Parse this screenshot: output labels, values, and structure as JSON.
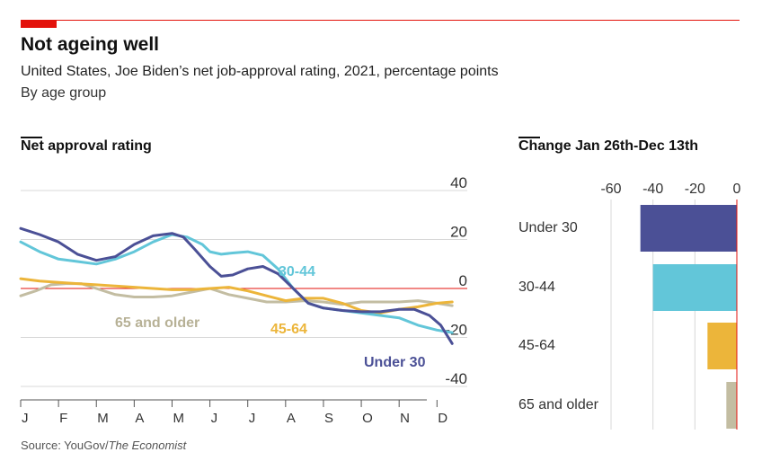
{
  "header": {
    "title": "Not ageing well",
    "subtitle": "United States, Joe Biden’s net job-approval rating, 2021, percentage points",
    "subtitle2": "By age group"
  },
  "source": {
    "prefix": "Source: YouGov/",
    "publication": "The Economist"
  },
  "colors": {
    "accent": "#e3120b",
    "under30": "#4b5096",
    "age30_44": "#62c6d9",
    "age45_64": "#ecb53a",
    "age65plus": "#c3bda2",
    "grid": "#d8d8d8",
    "zero": "#e3120b"
  },
  "chart_data": [
    {
      "type": "line",
      "title": "Net approval rating",
      "xlabel": "",
      "ylabel": "",
      "ylim": [
        -40,
        40
      ],
      "yticks": [
        40,
        20,
        0,
        -20,
        -40
      ],
      "ytick_labels": [
        "40",
        "20",
        "0",
        "-20",
        "-40"
      ],
      "x_tick_labels": [
        "J",
        "F",
        "M",
        "A",
        "M",
        "J",
        "J",
        "A",
        "S",
        "O",
        "N",
        "D"
      ],
      "xlim": [
        0.0,
        11.8
      ],
      "grid": "horizontal",
      "series": [
        {
          "name": "Under 30",
          "color": "#4b5096",
          "x": [
            0,
            0.5,
            1,
            1.5,
            2,
            2.5,
            3,
            3.5,
            4,
            4.3,
            4.6,
            5,
            5.3,
            5.6,
            6,
            6.4,
            6.8,
            7.2,
            7.6,
            8,
            8.5,
            9,
            9.5,
            10,
            10.4,
            10.8,
            11.1,
            11.4
          ],
          "y": [
            24.5,
            22,
            19,
            14,
            11.5,
            13,
            18,
            21.5,
            22.5,
            21,
            16,
            9,
            5,
            5.5,
            8,
            9,
            6,
            0,
            -6,
            -8,
            -9,
            -9.5,
            -9.5,
            -8.5,
            -8.5,
            -11,
            -15,
            -22.5
          ]
        },
        {
          "name": "30-44",
          "color": "#62c6d9",
          "x": [
            0,
            0.5,
            1,
            1.5,
            2,
            2.5,
            3,
            3.5,
            4,
            4.4,
            4.8,
            5,
            5.3,
            5.6,
            6,
            6.4,
            6.8,
            7.2,
            7.6,
            8,
            8.5,
            9,
            9.5,
            10,
            10.5,
            11,
            11.4
          ],
          "y": [
            19,
            15,
            12,
            11,
            10,
            12,
            15,
            19,
            22,
            21,
            18,
            15,
            14,
            14.5,
            15,
            13.5,
            8,
            0,
            -6,
            -8,
            -9,
            -10,
            -11,
            -12,
            -15,
            -17,
            -18
          ]
        },
        {
          "name": "45-64",
          "color": "#ecb53a",
          "x": [
            0,
            0.5,
            1,
            1.5,
            2,
            2.5,
            3,
            3.5,
            4,
            4.5,
            5,
            5.5,
            6,
            6.5,
            7,
            7.5,
            8,
            8.5,
            9,
            9.5,
            10,
            10.5,
            11,
            11.4
          ],
          "y": [
            4,
            3,
            2.5,
            2,
            1.5,
            1,
            0.5,
            0,
            -0.5,
            -0.5,
            0,
            0.5,
            -1,
            -3,
            -5,
            -4,
            -4,
            -6,
            -9,
            -10,
            -8.5,
            -7.5,
            -6,
            -5.5
          ]
        },
        {
          "name": "65 and older",
          "color": "#c3bda2",
          "x": [
            0,
            0.4,
            0.8,
            1.2,
            1.6,
            2,
            2.5,
            3,
            3.5,
            4,
            4.5,
            5,
            5.5,
            6,
            6.5,
            7,
            7.5,
            8,
            8.5,
            9,
            9.5,
            10,
            10.5,
            11,
            11.4
          ],
          "y": [
            -3,
            -1,
            1.5,
            2,
            2,
            0,
            -2.5,
            -3.5,
            -3.5,
            -3,
            -1.5,
            0,
            -2.5,
            -4,
            -5.5,
            -5.5,
            -5,
            -5.5,
            -6.5,
            -5.5,
            -5.5,
            -5.5,
            -5,
            -6,
            -7
          ]
        }
      ]
    },
    {
      "type": "bar",
      "orientation": "horizontal",
      "title": "Change Jan 26th-Dec 13th",
      "categories": [
        "Under 30",
        "30-44",
        "45-64",
        "65 and older"
      ],
      "values": [
        -46,
        -40,
        -14,
        -5
      ],
      "xlim": [
        -60,
        0
      ],
      "xticks": [
        -60,
        -40,
        -20,
        0
      ],
      "xtick_labels": [
        "-60",
        "-40",
        "-20",
        "0"
      ],
      "colors": [
        "#4b5096",
        "#62c6d9",
        "#ecb53a",
        "#c3bda2"
      ]
    }
  ]
}
